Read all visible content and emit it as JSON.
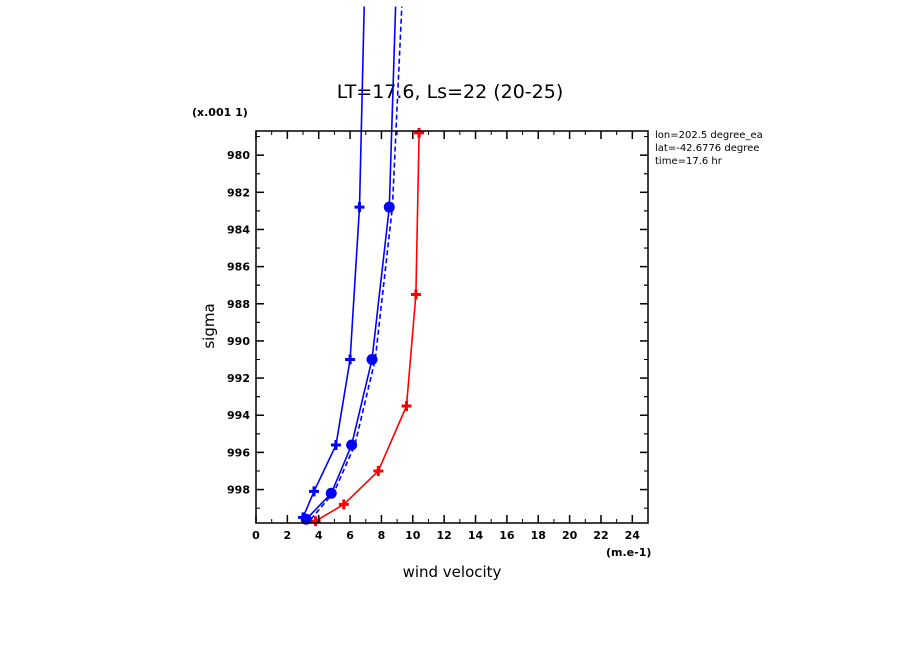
{
  "chart_data": {
    "type": "line",
    "title": "LT=17.6, Ls=22 (20-25)",
    "xlabel": "wind velocity",
    "ylabel": "sigma",
    "x_units": "(m.e-1)",
    "y_units": "(x.001 1)",
    "xlim": [
      0,
      25
    ],
    "ylim": [
      999.8,
      978.7
    ],
    "x_ticks": [
      "0",
      "2",
      "4",
      "6",
      "8",
      "10",
      "12",
      "14",
      "16",
      "18",
      "20",
      "22",
      "24"
    ],
    "y_ticks": [
      "980",
      "982",
      "984",
      "986",
      "988",
      "990",
      "992",
      "994",
      "996",
      "998"
    ],
    "y_tick_values": [
      980,
      982,
      984,
      986,
      988,
      990,
      992,
      994,
      996,
      998
    ],
    "x_tick_values": [
      0,
      2,
      4,
      6,
      8,
      10,
      12,
      14,
      16,
      18,
      20,
      22,
      24
    ],
    "info_lines": [
      "lon=202.5 degree_ea",
      "lat=-42.6776 degree",
      "time=17.6 hr"
    ],
    "grid": false,
    "series": [
      {
        "color": "#ff0000",
        "dash": false,
        "marker": "plus",
        "points": [
          [
            3.8,
            999.7
          ],
          [
            5.6,
            998.8
          ],
          [
            7.8,
            997.0
          ],
          [
            9.6,
            993.5
          ],
          [
            10.2,
            987.5
          ],
          [
            10.4,
            978.8
          ]
        ]
      },
      {
        "color": "#0000ff",
        "dash": false,
        "marker": "plus",
        "points": [
          [
            3.0,
            999.5
          ],
          [
            3.7,
            998.1
          ],
          [
            5.1,
            995.6
          ],
          [
            6.0,
            991.0
          ],
          [
            6.6,
            982.8
          ],
          [
            6.9,
            972.0
          ]
        ]
      },
      {
        "color": "#0000ff",
        "dash": false,
        "marker": "dot",
        "points": [
          [
            3.2,
            999.6
          ],
          [
            4.8,
            998.2
          ],
          [
            6.1,
            995.6
          ],
          [
            7.4,
            991.0
          ],
          [
            8.5,
            982.8
          ],
          [
            8.9,
            972.0
          ]
        ]
      },
      {
        "color": "#0000ff",
        "dash": true,
        "marker": "none",
        "points": [
          [
            3.5,
            999.6
          ],
          [
            5.0,
            998.1
          ],
          [
            6.3,
            995.6
          ],
          [
            7.6,
            991.0
          ],
          [
            8.7,
            982.8
          ],
          [
            9.3,
            972.0
          ]
        ]
      }
    ]
  }
}
